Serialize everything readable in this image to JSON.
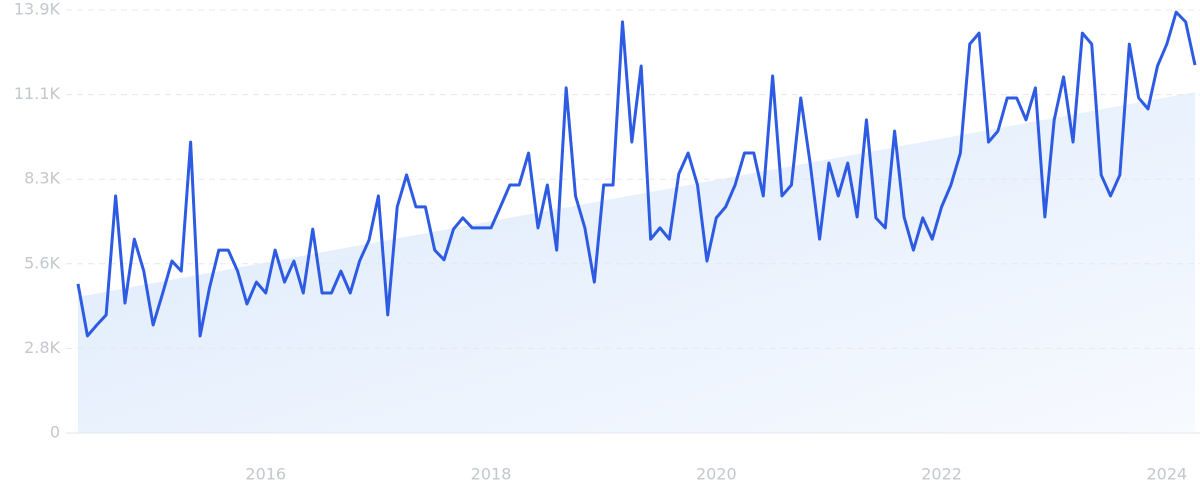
{
  "chart_data": {
    "type": "line",
    "color": "#2d5be3",
    "x": [
      2014.333,
      2014.417,
      2014.5,
      2014.583,
      2014.667,
      2014.75,
      2014.833,
      2014.917,
      2015,
      2015.083,
      2015.167,
      2015.25,
      2015.333,
      2015.417,
      2015.5,
      2015.583,
      2015.667,
      2015.75,
      2015.833,
      2015.917,
      2016,
      2016.083,
      2016.167,
      2016.25,
      2016.333,
      2016.417,
      2016.5,
      2016.583,
      2016.667,
      2016.75,
      2016.833,
      2016.917,
      2017,
      2017.083,
      2017.167,
      2017.25,
      2017.333,
      2017.417,
      2017.5,
      2017.583,
      2017.667,
      2017.75,
      2017.833,
      2017.917,
      2018,
      2018.083,
      2018.167,
      2018.25,
      2018.333,
      2018.417,
      2018.5,
      2018.583,
      2018.667,
      2018.75,
      2018.833,
      2018.917,
      2019,
      2019.083,
      2019.167,
      2019.25,
      2019.333,
      2019.417,
      2019.5,
      2019.583,
      2019.667,
      2019.75,
      2019.833,
      2019.917,
      2020,
      2020.083,
      2020.167,
      2020.25,
      2020.333,
      2020.417,
      2020.5,
      2020.583,
      2020.667,
      2020.75,
      2020.833,
      2020.917,
      2021,
      2021.083,
      2021.167,
      2021.25,
      2021.333,
      2021.417,
      2021.5,
      2021.583,
      2021.667,
      2021.75,
      2021.833,
      2021.917,
      2022,
      2022.083,
      2022.167,
      2022.25,
      2022.333,
      2022.417,
      2022.5,
      2022.583,
      2022.667,
      2022.75,
      2022.833,
      2022.917,
      2023,
      2023.083,
      2023.167,
      2023.25,
      2023.333,
      2023.417,
      2023.5,
      2023.583,
      2023.667,
      2023.75,
      2023.833,
      2023.917,
      2024,
      2024.083,
      2024.167,
      2024.25
    ],
    "values": [
      4900,
      3190,
      3550,
      3880,
      7790,
      4270,
      6370,
      5320,
      3550,
      4570,
      5650,
      5320,
      9560,
      3190,
      4760,
      6010,
      6010,
      5320,
      4240,
      4960,
      4600,
      6010,
      4960,
      5650,
      4600,
      6700,
      4600,
      4600,
      5320,
      4600,
      5650,
      6340,
      7790,
      3880,
      7430,
      8480,
      7430,
      7430,
      6010,
      5690,
      6700,
      7070,
      6740,
      6740,
      6740,
      7430,
      8150,
      8150,
      9200,
      6740,
      8150,
      6010,
      11340,
      7790,
      6740,
      4960,
      8150,
      8150,
      13510,
      9560,
      12060,
      6370,
      6740,
      6370,
      8510,
      9200,
      8150,
      5650,
      7070,
      7430,
      8150,
      9200,
      9200,
      7790,
      11730,
      7790,
      8150,
      11010,
      8870,
      6370,
      8870,
      7790,
      8870,
      7100,
      10290,
      7070,
      6740,
      9920,
      7100,
      6010,
      7070,
      6370,
      7430,
      8150,
      9200,
      12780,
      13140,
      9560,
      9920,
      11010,
      11010,
      10290,
      11340,
      7100,
      10290,
      11700,
      9560,
      13140,
      12780,
      8480,
      7790,
      8480,
      12780,
      11010,
      10650,
      12060,
      12780,
      13830,
      13510,
      12090
    ],
    "trend": {
      "x": [
        2014.333,
        2024.25
      ],
      "values": [
        4470,
        11200
      ]
    },
    "xlim": [
      2014.333,
      2024.25
    ],
    "xticks": [
      2016,
      2018,
      2020,
      2022,
      2024
    ],
    "ylim": [
      0,
      13900
    ],
    "yticks": [
      0,
      {
        "value": 2780,
        "label": "2.8K"
      },
      {
        "value": 5560,
        "label": "5.6K"
      },
      {
        "value": 8340,
        "label": "8.3K"
      },
      {
        "value": 11120,
        "label": "11.1K"
      },
      {
        "value": 13900,
        "label": "13.9K"
      }
    ],
    "grid": true
  }
}
